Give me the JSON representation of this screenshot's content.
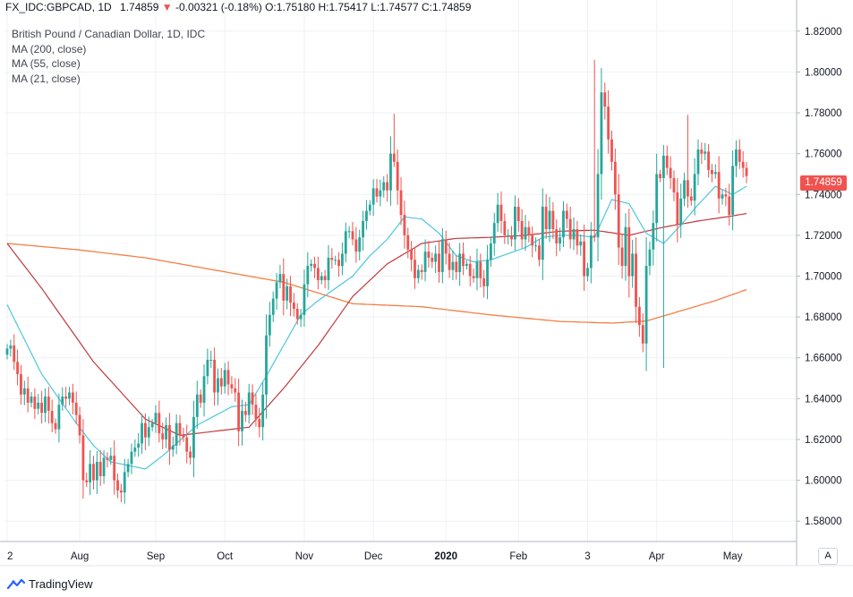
{
  "header": {
    "symbol": "FX_IDC:GBPCAD, 1D",
    "last": "1.74859",
    "change_arrow": "▼",
    "change": "-0.00321 (-0.18%)",
    "open_label": "O:",
    "open": "1.75180",
    "high_label": "H:",
    "high": "1.75417",
    "low_label": "L:",
    "low": "1.74577",
    "close_label": "C:",
    "close": "1.74859"
  },
  "legend": {
    "title": "British Pound / Canadian Dollar, 1D, IDC",
    "items": [
      "MA (200, close)",
      "MA (55, close)",
      "MA (21, close)"
    ]
  },
  "price_badge": "1.74859",
  "auto_button": "A",
  "brand": "TradingView",
  "colors": {
    "up": "#26a69a",
    "down": "#ef5350",
    "ma200": "#f57f45",
    "ma55": "#c0393b",
    "ma21": "#4dc7de",
    "grid": "#eef1f5",
    "axis": "#b2b5be"
  },
  "chart_data": {
    "type": "candlestick",
    "ylim": [
      1.57,
      1.83
    ],
    "y_ticks": [
      "1.82000",
      "1.80000",
      "1.78000",
      "1.76000",
      "1.74000",
      "1.72000",
      "1.70000",
      "1.68000",
      "1.66000",
      "1.64000",
      "1.62000",
      "1.60000",
      "1.58000"
    ],
    "y_tick_values": [
      1.82,
      1.8,
      1.78,
      1.76,
      1.74,
      1.72,
      1.7,
      1.68,
      1.66,
      1.64,
      1.62,
      1.6,
      1.58
    ],
    "x_ticks": [
      {
        "label": "2",
        "index": 0
      },
      {
        "label": "Aug",
        "index": 21
      },
      {
        "label": "Sep",
        "index": 43
      },
      {
        "label": "Oct",
        "index": 63
      },
      {
        "label": "Nov",
        "index": 86
      },
      {
        "label": "Dec",
        "index": 106
      },
      {
        "label": "2020",
        "index": 127,
        "bold": true
      },
      {
        "label": "Feb",
        "index": 148
      },
      {
        "label": "3",
        "index": 168
      },
      {
        "label": "Apr",
        "index": 188
      },
      {
        "label": "May",
        "index": 210
      }
    ],
    "closes": [
      1.6645,
      1.666,
      1.658,
      1.652,
      1.642,
      1.645,
      1.638,
      1.641,
      1.635,
      1.638,
      1.633,
      1.641,
      1.634,
      1.628,
      1.625,
      1.637,
      1.641,
      1.64,
      1.643,
      1.638,
      1.632,
      1.622,
      1.6,
      1.599,
      1.608,
      1.6,
      1.609,
      1.602,
      1.611,
      1.61,
      1.612,
      1.6,
      1.595,
      1.594,
      1.604,
      1.608,
      1.614,
      1.616,
      1.618,
      1.628,
      1.621,
      1.626,
      1.628,
      1.633,
      1.623,
      1.62,
      1.627,
      1.615,
      1.617,
      1.628,
      1.622,
      1.621,
      1.614,
      1.611,
      1.631,
      1.642,
      1.638,
      1.651,
      1.659,
      1.659,
      1.643,
      1.65,
      1.646,
      1.654,
      1.647,
      1.645,
      1.643,
      1.624,
      1.634,
      1.632,
      1.643,
      1.637,
      1.63,
      1.626,
      1.642,
      1.671,
      1.681,
      1.689,
      1.697,
      1.701,
      1.688,
      1.695,
      1.687,
      1.684,
      1.679,
      1.681,
      1.696,
      1.705,
      1.706,
      1.704,
      1.698,
      1.7,
      1.698,
      1.709,
      1.708,
      1.708,
      1.705,
      1.711,
      1.722,
      1.722,
      1.718,
      1.712,
      1.719,
      1.727,
      1.732,
      1.735,
      1.743,
      1.739,
      1.742,
      1.746,
      1.742,
      1.76,
      1.756,
      1.742,
      1.73,
      1.72,
      1.713,
      1.708,
      1.699,
      1.703,
      1.702,
      1.712,
      1.709,
      1.707,
      1.711,
      1.702,
      1.718,
      1.711,
      1.703,
      1.707,
      1.702,
      1.711,
      1.705,
      1.706,
      1.7,
      1.699,
      1.707,
      1.699,
      1.695,
      1.708,
      1.716,
      1.726,
      1.735,
      1.727,
      1.72,
      1.72,
      1.718,
      1.734,
      1.727,
      1.718,
      1.724,
      1.72,
      1.715,
      1.715,
      1.708,
      1.734,
      1.723,
      1.732,
      1.723,
      1.716,
      1.719,
      1.732,
      1.728,
      1.718,
      1.723,
      1.715,
      1.717,
      1.7,
      1.704,
      1.72,
      1.719,
      1.75,
      1.79,
      1.783,
      1.767,
      1.756,
      1.74,
      1.714,
      1.705,
      1.724,
      1.7,
      1.711,
      1.685,
      1.676,
      1.667,
      1.705,
      1.713,
      1.726,
      1.75,
      1.748,
      1.759,
      1.753,
      1.748,
      1.741,
      1.725,
      1.738,
      1.747,
      1.739,
      1.737,
      1.75,
      1.762,
      1.76,
      1.761,
      1.752,
      1.75,
      1.751,
      1.738,
      1.74,
      1.739,
      1.73,
      1.754,
      1.762,
      1.756,
      1.753,
      1.749
    ],
    "ma200_anchors": [
      [
        0,
        1.716
      ],
      [
        20,
        1.713
      ],
      [
        40,
        1.709
      ],
      [
        60,
        1.703
      ],
      [
        80,
        1.697
      ],
      [
        100,
        1.6865
      ],
      [
        120,
        1.685
      ],
      [
        140,
        1.681
      ],
      [
        160,
        1.6778
      ],
      [
        175,
        1.677
      ],
      [
        185,
        1.678
      ],
      [
        195,
        1.683
      ],
      [
        205,
        1.688
      ],
      [
        215,
        1.694
      ]
    ],
    "ma55_anchors": [
      [
        0,
        1.716
      ],
      [
        10,
        1.694
      ],
      [
        25,
        1.658
      ],
      [
        40,
        1.63
      ],
      [
        50,
        1.622
      ],
      [
        60,
        1.624
      ],
      [
        70,
        1.626
      ],
      [
        80,
        1.645
      ],
      [
        90,
        1.666
      ],
      [
        100,
        1.69
      ],
      [
        110,
        1.706
      ],
      [
        120,
        1.716
      ],
      [
        130,
        1.7185
      ],
      [
        140,
        1.719
      ],
      [
        150,
        1.72
      ],
      [
        160,
        1.722
      ],
      [
        170,
        1.7225
      ],
      [
        180,
        1.72
      ],
      [
        190,
        1.724
      ],
      [
        200,
        1.727
      ],
      [
        210,
        1.7295
      ],
      [
        215,
        1.731
      ]
    ],
    "ma21_anchors": [
      [
        0,
        1.686
      ],
      [
        10,
        1.652
      ],
      [
        20,
        1.628
      ],
      [
        25,
        1.617
      ],
      [
        30,
        1.609
      ],
      [
        40,
        1.6055
      ],
      [
        45,
        1.612
      ],
      [
        55,
        1.627
      ],
      [
        65,
        1.636
      ],
      [
        70,
        1.637
      ],
      [
        75,
        1.651
      ],
      [
        85,
        1.681
      ],
      [
        90,
        1.688
      ],
      [
        95,
        1.694
      ],
      [
        100,
        1.7
      ],
      [
        105,
        1.71
      ],
      [
        110,
        1.718
      ],
      [
        115,
        1.729
      ],
      [
        120,
        1.728
      ],
      [
        125,
        1.721
      ],
      [
        130,
        1.71
      ],
      [
        135,
        1.707
      ],
      [
        140,
        1.708
      ],
      [
        145,
        1.711
      ],
      [
        150,
        1.714
      ],
      [
        155,
        1.719
      ],
      [
        160,
        1.72
      ],
      [
        165,
        1.72
      ],
      [
        170,
        1.719
      ],
      [
        175,
        1.7375
      ],
      [
        180,
        1.7355
      ],
      [
        185,
        1.721
      ],
      [
        190,
        1.716
      ],
      [
        195,
        1.725
      ],
      [
        200,
        1.735
      ],
      [
        205,
        1.744
      ],
      [
        210,
        1.74
      ],
      [
        215,
        1.745
      ]
    ]
  }
}
